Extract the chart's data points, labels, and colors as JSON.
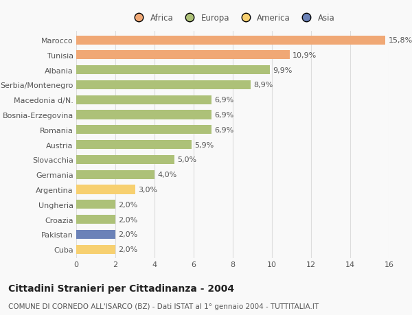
{
  "categories": [
    "Marocco",
    "Tunisia",
    "Albania",
    "Serbia/Montenegro",
    "Macedonia d/N.",
    "Bosnia-Erzegovina",
    "Romania",
    "Austria",
    "Slovacchia",
    "Germania",
    "Argentina",
    "Ungheria",
    "Croazia",
    "Pakistan",
    "Cuba"
  ],
  "values": [
    15.8,
    10.9,
    9.9,
    8.9,
    6.9,
    6.9,
    6.9,
    5.9,
    5.0,
    4.0,
    3.0,
    2.0,
    2.0,
    2.0,
    2.0
  ],
  "bar_colors": [
    "#f0a875",
    "#f0a875",
    "#adc178",
    "#adc178",
    "#adc178",
    "#adc178",
    "#adc178",
    "#adc178",
    "#adc178",
    "#adc178",
    "#f7d070",
    "#adc178",
    "#adc178",
    "#6b82b8",
    "#f7d070"
  ],
  "labels": [
    "15,8%",
    "10,9%",
    "9,9%",
    "8,9%",
    "6,9%",
    "6,9%",
    "6,9%",
    "5,9%",
    "5,0%",
    "4,0%",
    "3,0%",
    "2,0%",
    "2,0%",
    "2,0%",
    "2,0%"
  ],
  "legend_labels": [
    "Africa",
    "Europa",
    "America",
    "Asia"
  ],
  "legend_colors": [
    "#f0a875",
    "#adc178",
    "#f7d070",
    "#6b82b8"
  ],
  "title": "Cittadini Stranieri per Cittadinanza - 2004",
  "subtitle": "COMUNE DI CORNEDO ALL'ISARCO (BZ) - Dati ISTAT al 1° gennaio 2004 - TUTTITALIA.IT",
  "xlim": [
    0,
    16
  ],
  "xticks": [
    0,
    2,
    4,
    6,
    8,
    10,
    12,
    14,
    16
  ],
  "background_color": "#f9f9f9",
  "bar_height": 0.6,
  "label_fontsize": 8,
  "tick_fontsize": 8,
  "title_fontsize": 10,
  "subtitle_fontsize": 7.5
}
